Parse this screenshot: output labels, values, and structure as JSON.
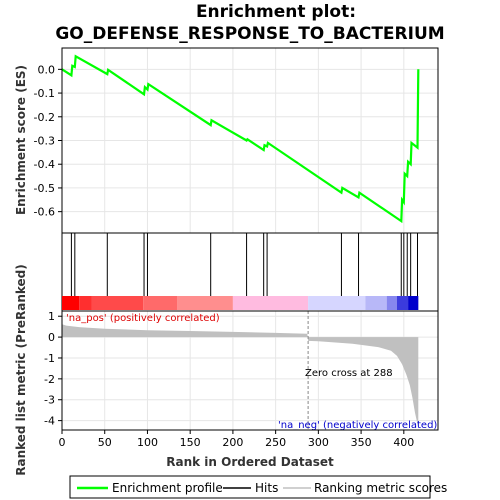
{
  "chart_data": {
    "type": "line",
    "title_line1": "Enrichment plot:",
    "title_line2": "GO_DEFENSE_RESPONSE_TO_BACTERIUM",
    "top_panel": {
      "ylabel": "Enrichment score (ES)",
      "ylim": [
        -0.69,
        0.09
      ],
      "yticks": [
        0.0,
        -0.1,
        -0.2,
        -0.3,
        -0.4,
        -0.5,
        -0.6
      ],
      "ytick_labels": [
        "0.0",
        "-0.1",
        "-0.2",
        "-0.3",
        "-0.4",
        "-0.5",
        "-0.6"
      ],
      "line_color": "#00ff00",
      "series": [
        {
          "name": "Enrichment profile",
          "x": [
            0,
            11,
            12,
            15,
            16,
            53,
            54,
            96,
            97,
            100,
            101,
            174,
            175,
            216,
            217,
            236,
            237,
            240,
            241,
            327,
            328,
            347,
            348,
            397,
            398,
            400,
            401,
            404,
            405,
            408,
            409,
            416,
            417
          ],
          "y": [
            0.0,
            -0.025,
            0.015,
            0.01,
            0.055,
            -0.02,
            -0.002,
            -0.105,
            -0.075,
            -0.085,
            -0.062,
            -0.235,
            -0.215,
            -0.3,
            -0.295,
            -0.34,
            -0.32,
            -0.325,
            -0.31,
            -0.52,
            -0.5,
            -0.54,
            -0.52,
            -0.64,
            -0.55,
            -0.56,
            -0.44,
            -0.45,
            -0.39,
            -0.4,
            -0.31,
            -0.33,
            0.0
          ]
        }
      ]
    },
    "hits": [
      11,
      15,
      53,
      96,
      100,
      174,
      216,
      236,
      240,
      327,
      347,
      397,
      400,
      404,
      408,
      416
    ],
    "middle_band_colors": [
      "#ff0000",
      "#ff3a3a",
      "#ff5c5c",
      "#ff8080",
      "#ffb3d9",
      "#d9d9ff",
      "#a8a8f5",
      "#7070e8",
      "#2b2bd6",
      "#0000cc"
    ],
    "bottom_panel": {
      "ylabel": "Ranked list metric (PreRanked)",
      "ylim": [
        -4.45,
        1.25
      ],
      "yticks": [
        1,
        0,
        -1,
        -2,
        -3,
        -4
      ],
      "ytick_labels": [
        "1",
        "0",
        "-1",
        "-2",
        "-3",
        "-4"
      ],
      "fill_color": "#c0c0c0",
      "metric_x": [
        0,
        5,
        20,
        50,
        100,
        150,
        200,
        250,
        287,
        288,
        300,
        340,
        370,
        385,
        392,
        398,
        403,
        407,
        410,
        413,
        417
      ],
      "metric_y": [
        0.62,
        0.55,
        0.48,
        0.4,
        0.33,
        0.29,
        0.25,
        0.2,
        0.16,
        -0.18,
        -0.2,
        -0.32,
        -0.48,
        -0.65,
        -0.9,
        -1.3,
        -1.8,
        -2.3,
        -2.9,
        -3.6,
        -4.35
      ],
      "pos_label": "'na_pos' (positively correlated)",
      "neg_label": "'na_neg' (negatively correlated)",
      "zero_cross_label": "Zero cross at 288",
      "zero_cross_x": 288
    },
    "xlabel": "Rank in Ordered Dataset",
    "xlim": [
      0,
      440
    ],
    "xticks": [
      0,
      50,
      100,
      150,
      200,
      250,
      300,
      350,
      400
    ],
    "xtick_labels": [
      "0",
      "50",
      "100",
      "150",
      "200",
      "250",
      "300",
      "350",
      "400"
    ],
    "grid": true,
    "legend": {
      "placement": "bottom",
      "items": [
        {
          "label": "Enrichment profile",
          "color": "#00ff00"
        },
        {
          "label": "Hits",
          "color": "#000000"
        },
        {
          "label": "Ranking metric scores",
          "color": "#c0c0c0"
        }
      ]
    }
  }
}
